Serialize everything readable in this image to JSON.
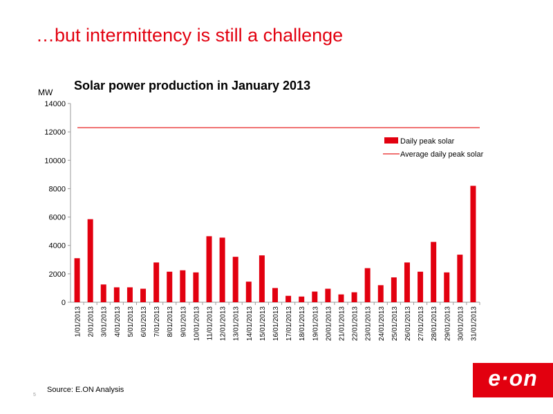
{
  "slide": {
    "title": "…but intermittency is still a challenge",
    "source": "Source: E.ON Analysis",
    "page_number": "5",
    "logo_text": "e·on"
  },
  "colors": {
    "brand_red": "#e2000f",
    "average_line": "#f07070"
  },
  "chart_data": {
    "type": "bar",
    "title": "Solar power production in January 2013",
    "ylabel": "MW",
    "xlabel": "",
    "ylim": [
      0,
      14000
    ],
    "yticks": [
      0,
      2000,
      4000,
      6000,
      8000,
      10000,
      12000,
      14000
    ],
    "grid": false,
    "legend_position": "top-right",
    "categories": [
      "1/01/2013",
      "2/01/2013",
      "3/01/2013",
      "4/01/2013",
      "5/01/2013",
      "6/01/2013",
      "7/01/2013",
      "8/01/2013",
      "9/01/2013",
      "10/01/2013",
      "11/01/2013",
      "12/01/2013",
      "13/01/2013",
      "14/01/2013",
      "15/01/2013",
      "16/01/2013",
      "17/01/2013",
      "18/01/2013",
      "19/01/2013",
      "20/01/2013",
      "21/01/2013",
      "22/01/2013",
      "23/01/2013",
      "24/01/2013",
      "25/01/2013",
      "26/01/2013",
      "27/01/2013",
      "28/01/2013",
      "29/01/2013",
      "30/01/2013",
      "31/01/2013"
    ],
    "series": [
      {
        "name": "Daily peak solar",
        "type": "bar",
        "color": "#e2000f",
        "values": [
          3100,
          5850,
          1250,
          1050,
          1050,
          950,
          2800,
          2150,
          2250,
          2100,
          4650,
          4550,
          3200,
          1450,
          3300,
          1000,
          450,
          400,
          750,
          950,
          550,
          700,
          2400,
          1200,
          1750,
          2800,
          2150,
          4250,
          2100,
          3350,
          8200
        ]
      },
      {
        "name": "Average daily peak solar",
        "type": "line",
        "color": "#f07070",
        "value": 12300
      }
    ]
  }
}
